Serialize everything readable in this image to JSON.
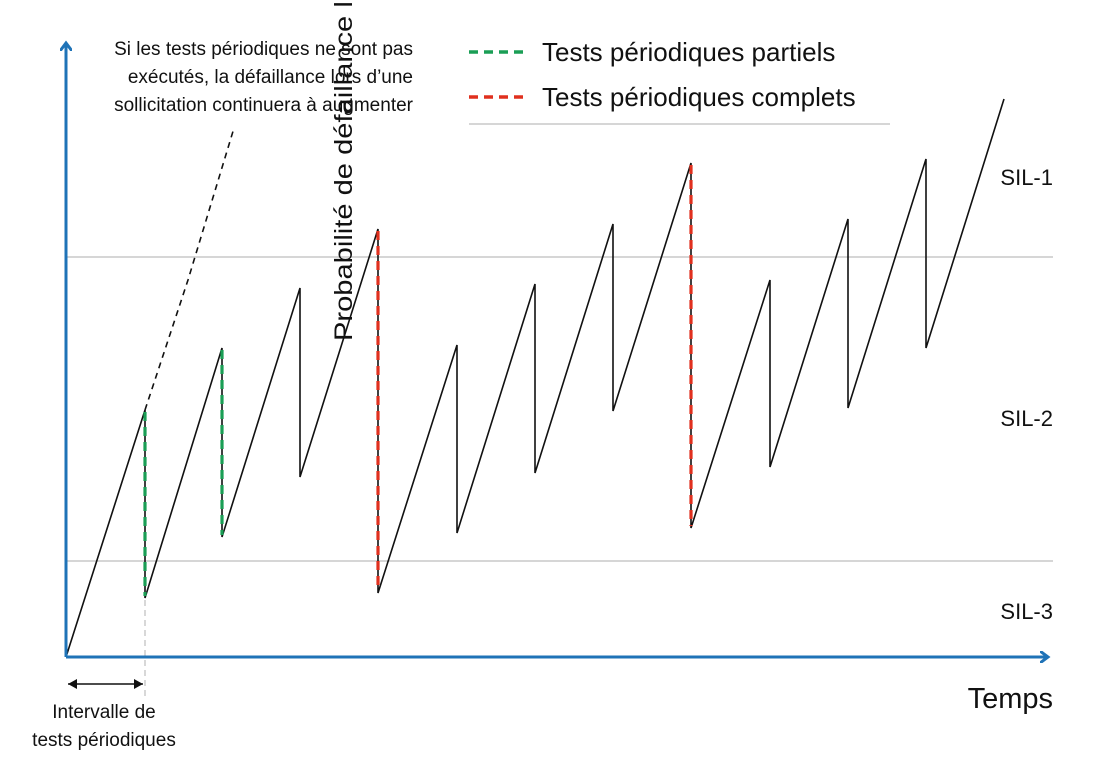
{
  "colors": {
    "axis": "#1f73b7",
    "curve": "#111111",
    "partial": "#1a9e55",
    "complete": "#e0301e",
    "threshold": "#bdbdbd"
  },
  "axes": {
    "ylabel": "Probabilité de défaillance lors d’une sollicitation",
    "xlabel": "Temps"
  },
  "sil_levels": [
    "SIL-1",
    "SIL-2",
    "SIL-3"
  ],
  "note": [
    "Si les tests périodiques ne sont pas",
    "exécutés, la défaillance lors d’une",
    "sollicitation continuera à augmenter"
  ],
  "legend": {
    "partial": "Tests périodiques partiels",
    "complete": "Tests périodiques complets"
  },
  "interval_label": [
    "Intervalle de",
    "tests périodiques"
  ]
}
